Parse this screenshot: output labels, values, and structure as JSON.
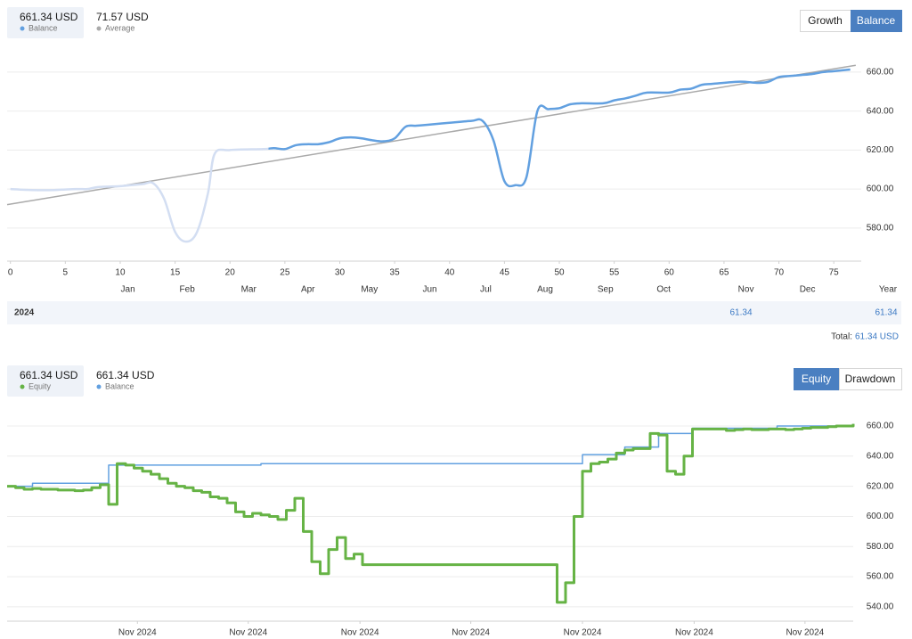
{
  "chart_data": [
    {
      "type": "line",
      "header_stats": [
        {
          "value": "661.34 USD",
          "label": "Balance",
          "color": "#62a0e0"
        },
        {
          "value": "71.57 USD",
          "label": "Average",
          "color": "#aaaaaa"
        }
      ],
      "buttons": [
        "Growth",
        "Balance"
      ],
      "active_button": 1,
      "xlim": [
        -0.3,
        77.5
      ],
      "xticks": [
        0,
        5,
        10,
        15,
        20,
        25,
        30,
        35,
        40,
        45,
        50,
        55,
        60,
        65,
        70,
        75
      ],
      "month_ticks": [
        {
          "value": 10.7,
          "label": "Jan"
        },
        {
          "value": 16.1,
          "label": "Feb"
        },
        {
          "value": 21.7,
          "label": "Mar"
        },
        {
          "value": 27.1,
          "label": "Apr"
        },
        {
          "value": 32.7,
          "label": "May"
        },
        {
          "value": 38.2,
          "label": "Jun"
        },
        {
          "value": 43.3,
          "label": "Jul"
        },
        {
          "value": 48.7,
          "label": "Aug"
        },
        {
          "value": 54.2,
          "label": "Sep"
        },
        {
          "value": 59.5,
          "label": "Oct"
        },
        {
          "value": 67,
          "label": "Nov"
        },
        {
          "value": 72.6,
          "label": "Dec"
        }
      ],
      "ylim": [
        563,
        665
      ],
      "yticks": [
        {
          "value": 580,
          "label": "580.00"
        },
        {
          "value": 600,
          "label": "600.00"
        },
        {
          "value": 620,
          "label": "620.00"
        },
        {
          "value": 640,
          "label": "640.00"
        },
        {
          "value": 660,
          "label": "660.00"
        }
      ],
      "grid": true,
      "smooth": true,
      "series": [
        {
          "name": "Average",
          "color": "#aaaaaa",
          "x": [
            -0.3,
            77
          ],
          "values": [
            592,
            663.5
          ]
        },
        {
          "name": "Balance",
          "color": "#62a0e0",
          "faded_color": "#d3def2",
          "faded_before_x": 23.5,
          "x": [
            0,
            2,
            4,
            6,
            7,
            8,
            10,
            12,
            13,
            14,
            15,
            16,
            17,
            18,
            18.6,
            20,
            23,
            24,
            25,
            26,
            27,
            28,
            29,
            30,
            31,
            32,
            33,
            34,
            35,
            36,
            37,
            38,
            40,
            42,
            43,
            44,
            45,
            46,
            47,
            48,
            49,
            50,
            51,
            52,
            54,
            55,
            56,
            57,
            58,
            60,
            61,
            62,
            63,
            64,
            66,
            67,
            68,
            69,
            70,
            71,
            72,
            73,
            74,
            75,
            76.5
          ],
          "values": [
            600,
            599.5,
            599.5,
            600,
            600,
            601,
            601.5,
            602.5,
            603,
            595,
            578,
            573,
            578,
            598,
            618,
            620,
            620.5,
            621,
            620.5,
            622.5,
            623,
            623,
            624,
            626,
            626.5,
            626,
            625,
            624.5,
            626,
            632,
            632.5,
            633,
            634,
            635,
            635,
            625,
            604,
            602,
            606,
            640,
            641,
            641.5,
            643.5,
            644,
            644,
            645.5,
            646.5,
            648,
            649.5,
            649.5,
            651,
            651.5,
            653.5,
            654,
            655,
            655,
            654.5,
            655,
            657.5,
            658,
            658.5,
            659,
            660,
            660.5,
            661.34
          ]
        }
      ],
      "year_table": {
        "header": "Year",
        "rows": [
          [
            "2024",
            "61.34",
            "61.34"
          ]
        ]
      },
      "total_label": "Total:",
      "total_value": "61.34 USD"
    },
    {
      "type": "step",
      "header_stats": [
        {
          "value": "661.34 USD",
          "label": "Equity",
          "color": "#66b345"
        },
        {
          "value": "661.34 USD",
          "label": "Balance",
          "color": "#62a0e0"
        }
      ],
      "buttons": [
        "Equity",
        "Drawdown"
      ],
      "active_button": 0,
      "xlim": [
        0,
        100
      ],
      "xticks": [
        {
          "value": 15.4,
          "label": "Nov 2024"
        },
        {
          "value": 28.5,
          "label": "Nov 2024"
        },
        {
          "value": 41.7,
          "label": "Nov 2024"
        },
        {
          "value": 54.8,
          "label": "Nov 2024"
        },
        {
          "value": 68,
          "label": "Nov 2024"
        },
        {
          "value": 81.2,
          "label": "Nov 2024"
        },
        {
          "value": 94.3,
          "label": "Nov 2024"
        }
      ],
      "ylim": [
        530.5,
        664.7
      ],
      "yticks": [
        {
          "value": 540,
          "label": "540.00"
        },
        {
          "value": 560,
          "label": "560.00"
        },
        {
          "value": 580,
          "label": "580.00"
        },
        {
          "value": 600,
          "label": "600.00"
        },
        {
          "value": 620,
          "label": "620.00"
        },
        {
          "value": 640,
          "label": "640.00"
        },
        {
          "value": 660,
          "label": "660.00"
        }
      ],
      "grid": true,
      "series": [
        {
          "name": "Balance",
          "color": "#62a0e0",
          "width": 1.5,
          "x": [
            0,
            3,
            12,
            30,
            68,
            73,
            77,
            81,
            91,
            100
          ],
          "values": [
            620,
            622,
            634,
            635,
            641,
            646,
            655,
            658.5,
            660,
            661.34
          ]
        },
        {
          "name": "Equity",
          "color": "#66b345",
          "width": 3,
          "x": [
            0,
            1,
            2,
            3,
            4,
            5,
            6,
            7,
            8,
            9,
            10,
            11,
            12,
            13,
            14,
            15,
            16,
            17,
            18,
            19,
            20,
            21,
            22,
            23,
            24,
            25,
            26,
            27,
            28,
            29,
            30,
            31,
            32,
            33,
            34,
            35,
            36,
            37,
            38,
            39,
            40,
            41,
            42,
            43,
            44,
            45,
            46,
            47,
            48,
            49,
            50,
            51,
            52,
            53,
            54,
            55,
            56,
            57,
            58,
            59,
            60,
            61,
            62,
            63,
            64,
            65,
            66,
            67,
            68,
            69,
            70,
            71,
            72,
            73,
            74,
            75,
            76,
            77,
            78,
            79,
            80,
            81,
            82,
            83,
            84,
            85,
            86,
            87,
            88,
            89,
            90,
            91,
            92,
            93,
            94,
            95,
            96,
            97,
            98,
            99,
            100
          ],
          "values": [
            620,
            619,
            618,
            618.5,
            618,
            618,
            617.5,
            617.5,
            617,
            617.5,
            619,
            621,
            608,
            635,
            634,
            632,
            630,
            628,
            625,
            622,
            620,
            619,
            617,
            616,
            613,
            612,
            609,
            603,
            600,
            602,
            601,
            600,
            598,
            604,
            612,
            590,
            570,
            562,
            578,
            586,
            572,
            575,
            568,
            568,
            568,
            568,
            568,
            568,
            568,
            568,
            568,
            568,
            568,
            568,
            568,
            568,
            568,
            568,
            568,
            568,
            568,
            568,
            568,
            568,
            568,
            543,
            556,
            600,
            630,
            635,
            636,
            638,
            642,
            644,
            645,
            645,
            655,
            654,
            630,
            628,
            640,
            658,
            658,
            658,
            658,
            657,
            657.5,
            658,
            657.5,
            657.5,
            658,
            658,
            657.5,
            658,
            658.5,
            659,
            659,
            659.5,
            660,
            660,
            661.34
          ]
        }
      ]
    }
  ]
}
